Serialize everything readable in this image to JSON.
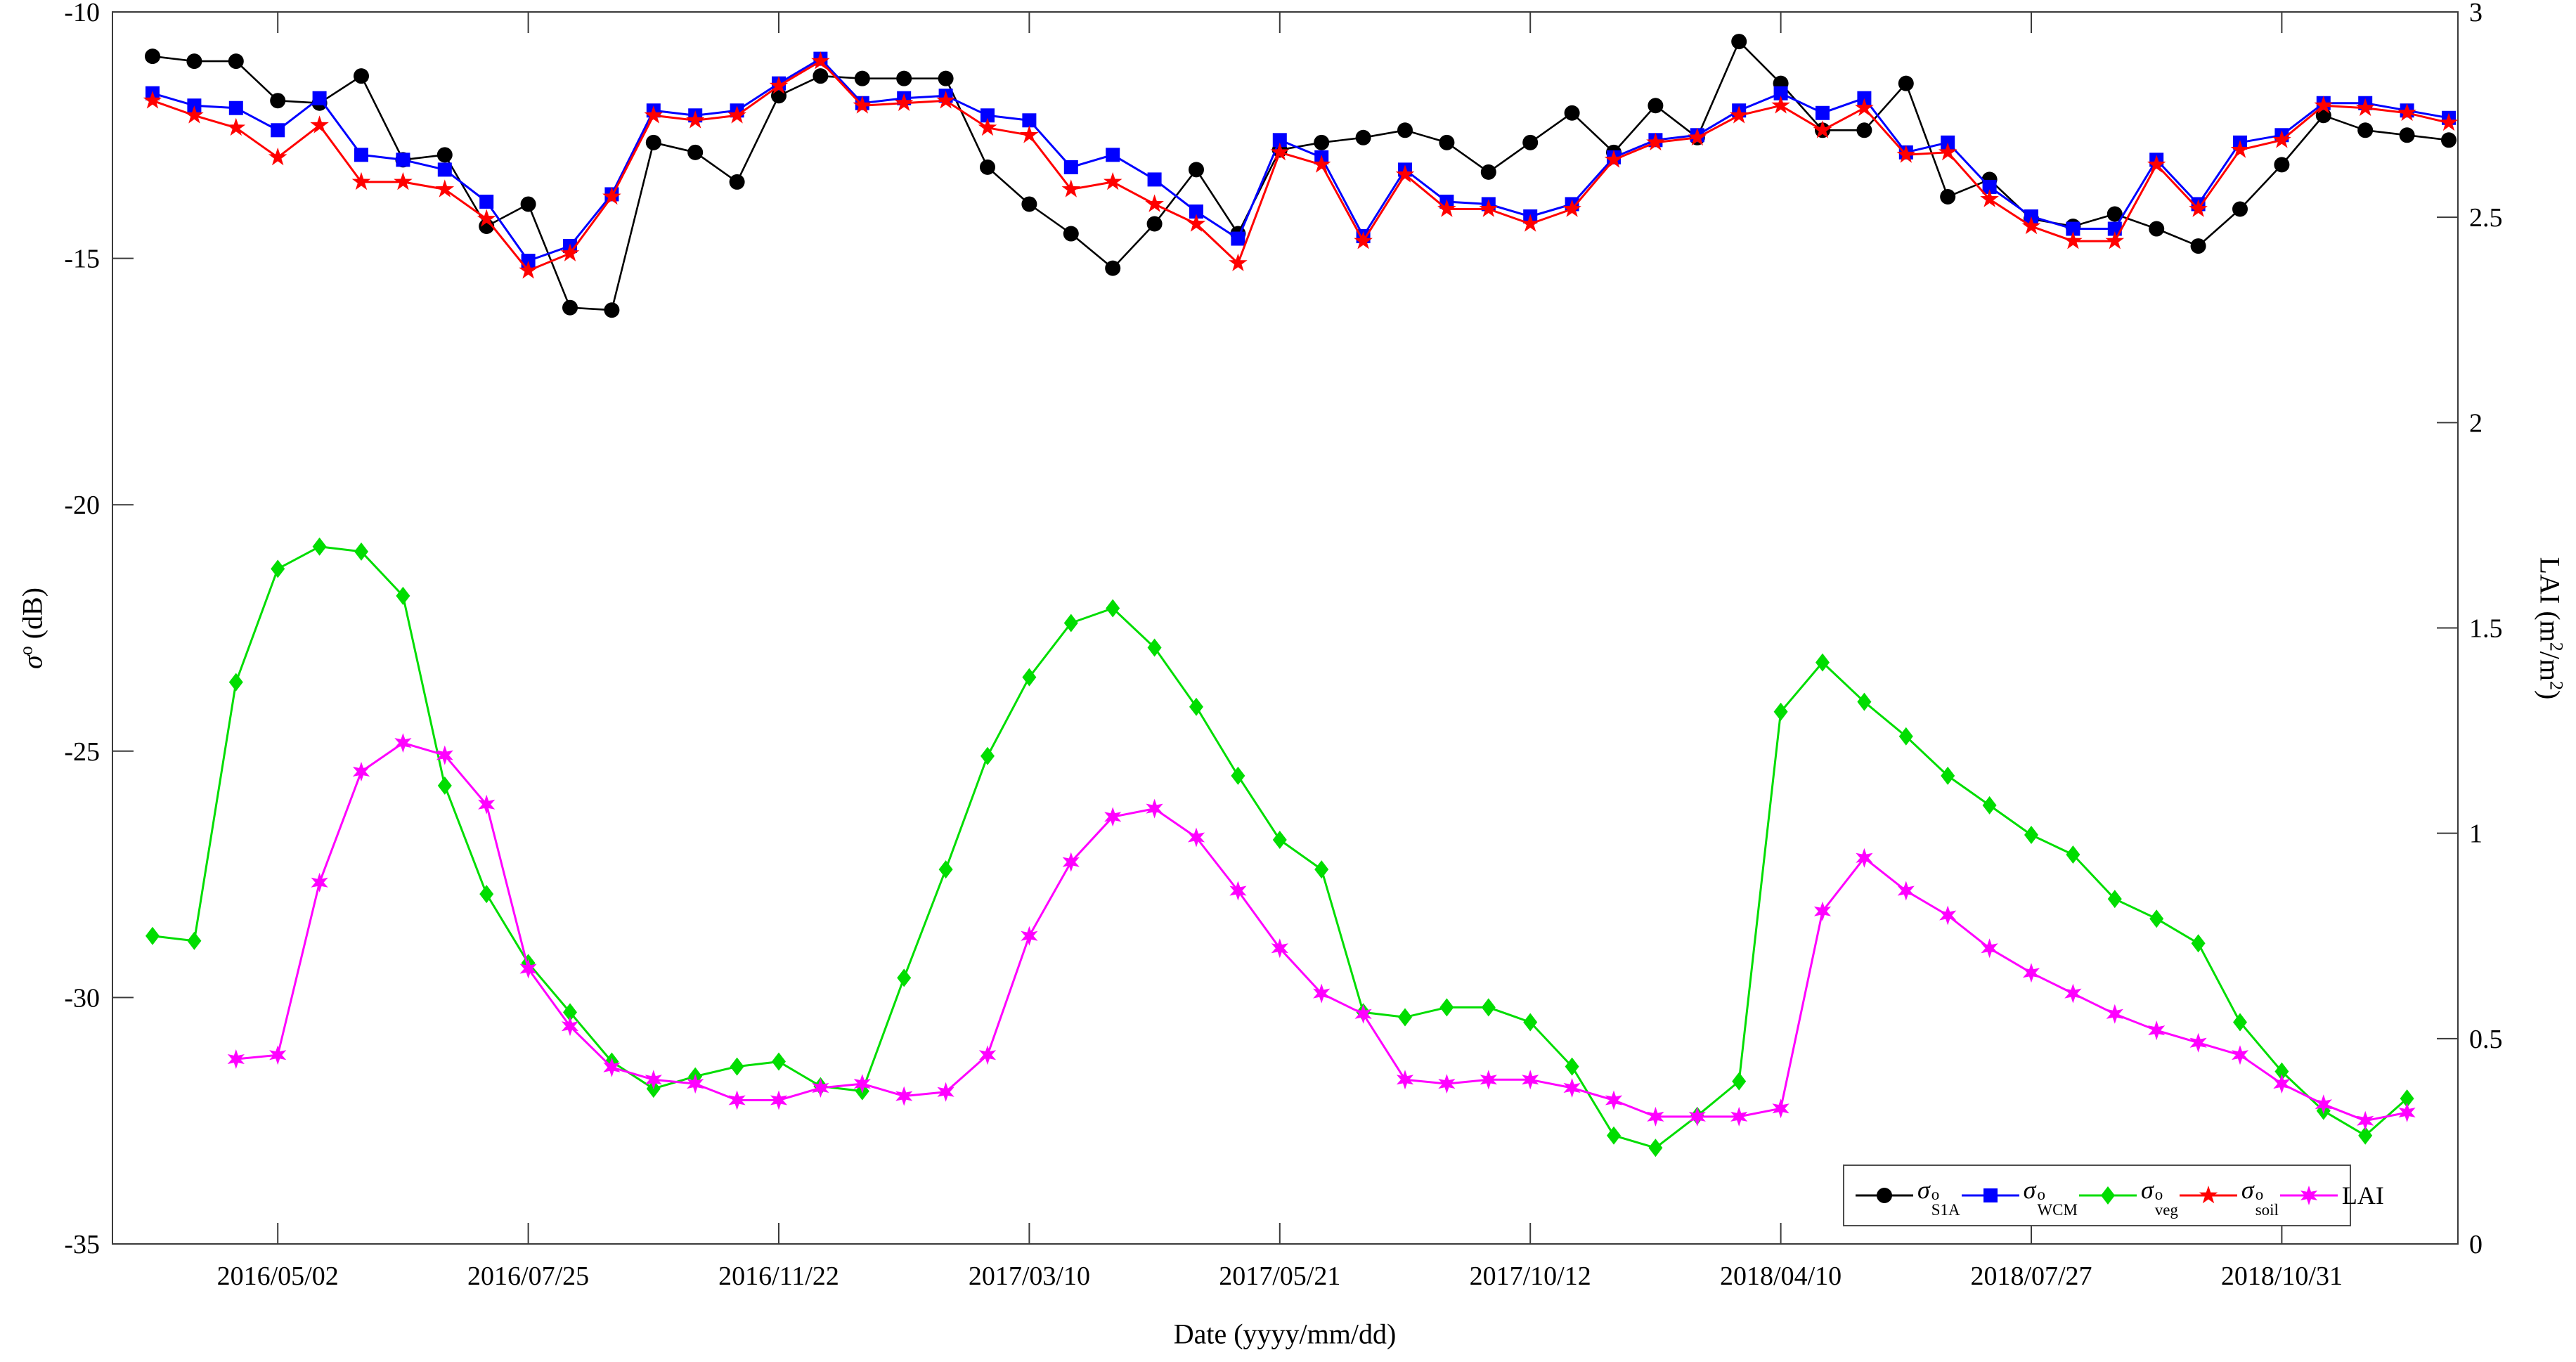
{
  "chart_data": {
    "type": "line",
    "title": "",
    "x_axis": {
      "label": "Date (yyyy/mm/dd)",
      "tick_indices": [
        3,
        9,
        15,
        21,
        27,
        33,
        39,
        45,
        51
      ],
      "tick_labels": [
        "2016/05/02",
        "2016/07/25",
        "2016/11/22",
        "2017/03/10",
        "2017/05/21",
        "2017/10/12",
        "2018/04/10",
        "2018/07/27",
        "2018/10/31"
      ],
      "point_count": 56
    },
    "y_axis_left": {
      "label_parts": {
        "sym": "σ",
        "sup": "o",
        "rest": " (dB)"
      },
      "range": [
        -35,
        -10
      ],
      "ticks": [
        "-10",
        "-15",
        "-20",
        "-25",
        "-30",
        "-35"
      ],
      "tick_values": [
        -10,
        -15,
        -20,
        -25,
        -30,
        -35
      ]
    },
    "y_axis_right": {
      "label_parts": {
        "p1": "LAI (m",
        "s1": "2",
        "p2": "/m",
        "s2": "2",
        "p3": ")"
      },
      "range": [
        0,
        3
      ],
      "ticks": [
        "3",
        "2.5",
        "2",
        "1.5",
        "1",
        "0.5",
        "0"
      ],
      "tick_values": [
        3,
        2.5,
        2,
        1.5,
        1,
        0.5,
        0
      ]
    },
    "legend_position": "bottom-right-inside",
    "series": [
      {
        "name": "sigma0_S1A",
        "legend": {
          "sym": "σ",
          "sup": "o",
          "sub": "S1A"
        },
        "color": "#000000",
        "marker": "circle",
        "axis": "left",
        "values": [
          -10.9,
          -11.0,
          -11.0,
          -11.8,
          -11.85,
          -11.3,
          -13.0,
          -12.9,
          -14.35,
          -13.9,
          -16.0,
          -16.05,
          -12.65,
          -12.85,
          -13.45,
          -11.7,
          -11.3,
          -11.35,
          -11.35,
          -11.35,
          -13.15,
          -13.9,
          -14.5,
          -15.2,
          -14.3,
          -13.2,
          -14.5,
          -12.8,
          -12.65,
          -12.55,
          -12.4,
          -12.65,
          -13.25,
          -12.65,
          -12.05,
          -12.85,
          -11.9,
          -12.55,
          -10.6,
          -11.45,
          -12.4,
          -12.4,
          -11.45,
          -13.75,
          -13.4,
          -14.2,
          -14.35,
          -14.1,
          -14.4,
          -14.75,
          -14.0,
          -13.1,
          -12.1,
          -12.4,
          -12.5,
          -12.6
        ]
      },
      {
        "name": "sigma0_WCM",
        "legend": {
          "sym": "σ",
          "sup": "o",
          "sub": "WCM"
        },
        "color": "#0000ff",
        "marker": "square",
        "axis": "left",
        "values": [
          -11.65,
          -11.9,
          -11.95,
          -12.4,
          -11.75,
          -12.9,
          -13.0,
          -13.2,
          -13.85,
          -15.05,
          -14.75,
          -13.7,
          -12.0,
          -12.1,
          -12.0,
          -11.45,
          -10.95,
          -11.85,
          -11.75,
          -11.7,
          -12.1,
          -12.2,
          -13.15,
          -12.9,
          -13.4,
          -14.05,
          -14.6,
          -12.6,
          -12.95,
          -14.55,
          -13.2,
          -13.85,
          -13.9,
          -14.15,
          -13.9,
          -12.95,
          -12.6,
          -12.5,
          -12.0,
          -11.65,
          -12.05,
          -11.75,
          -12.85,
          -12.65,
          -13.55,
          -14.15,
          -14.4,
          -14.4,
          -13.0,
          -13.9,
          -12.65,
          -12.5,
          -11.85,
          -11.85,
          -12.0,
          -12.15
        ]
      },
      {
        "name": "sigma0_veg",
        "legend": {
          "sym": "σ",
          "sup": "o",
          "sub": "veg"
        },
        "color": "#00dd00",
        "marker": "diamond",
        "axis": "left",
        "values": [
          -28.75,
          -28.85,
          -23.6,
          -21.3,
          -20.85,
          -20.95,
          -21.85,
          -25.7,
          -27.9,
          -29.3,
          -30.3,
          -31.3,
          -31.85,
          -31.6,
          -31.4,
          -31.3,
          -31.8,
          -31.9,
          -29.6,
          -27.4,
          -25.1,
          -23.5,
          -22.4,
          -22.1,
          -22.9,
          -24.1,
          -25.5,
          -26.8,
          -27.4,
          -30.3,
          -30.4,
          -30.2,
          -30.2,
          -30.5,
          -31.4,
          -32.8,
          -33.05,
          -32.4,
          -31.7,
          -24.2,
          -23.2,
          -24.0,
          -24.7,
          -25.5,
          -26.1,
          -26.7,
          -27.1,
          -28.0,
          -28.4,
          -28.9,
          -30.5,
          -31.5,
          -32.3,
          -32.8,
          -32.05,
          null
        ]
      },
      {
        "name": "sigma0_soil",
        "legend": {
          "sym": "σ",
          "sup": "o",
          "sub": "soil"
        },
        "color": "#ff0000",
        "marker": "star5",
        "axis": "left",
        "values": [
          -11.8,
          -12.1,
          -12.35,
          -12.95,
          -12.3,
          -13.45,
          -13.45,
          -13.6,
          -14.2,
          -15.25,
          -14.9,
          -13.75,
          -12.1,
          -12.2,
          -12.1,
          -11.5,
          -11.0,
          -11.9,
          -11.85,
          -11.8,
          -12.35,
          -12.5,
          -13.6,
          -13.45,
          -13.9,
          -14.3,
          -15.1,
          -12.85,
          -13.1,
          -14.65,
          -13.3,
          -14.0,
          -14.0,
          -14.3,
          -14.0,
          -13.0,
          -12.65,
          -12.55,
          -12.1,
          -11.9,
          -12.4,
          -11.95,
          -12.9,
          -12.85,
          -13.8,
          -14.35,
          -14.65,
          -14.65,
          -13.1,
          -14.0,
          -12.8,
          -12.6,
          -11.9,
          -11.95,
          -12.05,
          -12.25
        ]
      },
      {
        "name": "LAI",
        "legend": {
          "text": "LAI"
        },
        "color": "#ff00ff",
        "marker": "star6",
        "axis": "right",
        "values": [
          null,
          null,
          0.45,
          0.46,
          0.88,
          1.15,
          1.22,
          1.19,
          1.07,
          0.67,
          0.53,
          0.43,
          0.4,
          0.39,
          0.35,
          0.35,
          0.38,
          0.39,
          0.36,
          0.37,
          0.46,
          0.75,
          0.93,
          1.04,
          1.06,
          0.99,
          0.86,
          0.72,
          0.61,
          0.56,
          0.4,
          0.39,
          0.4,
          0.4,
          0.38,
          0.35,
          0.31,
          0.31,
          0.31,
          0.33,
          0.81,
          0.94,
          0.86,
          0.8,
          0.72,
          0.66,
          0.61,
          0.56,
          0.52,
          0.49,
          0.46,
          0.39,
          0.34,
          0.3,
          0.32,
          null
        ]
      }
    ]
  }
}
